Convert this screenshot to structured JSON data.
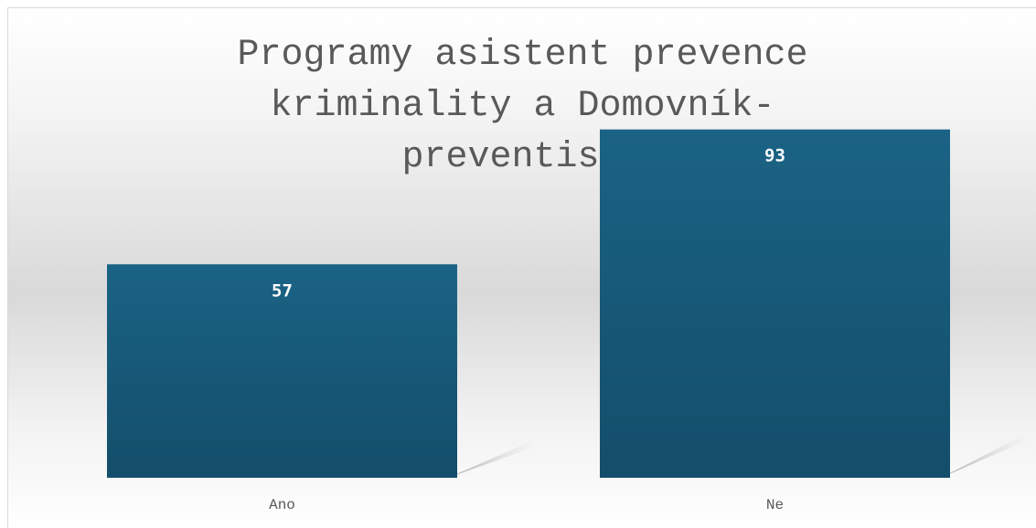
{
  "chart_data": {
    "type": "bar",
    "title": "Programy asistent prevence kriminality a Domovník-preventista",
    "categories": [
      "Ano",
      "Ne"
    ],
    "series": [
      {
        "values": [
          57,
          93
        ],
        "color": "#1b6385"
      }
    ],
    "data_labels": [
      "57",
      "93"
    ],
    "xlabel": "",
    "ylabel": "",
    "ylim": [
      0,
      100
    ],
    "grid": false,
    "legend": "none"
  },
  "colors": {
    "bar_top": "#1b6385",
    "bar_bottom": "#134e6a",
    "title": "#595959",
    "tick": "#595959",
    "data_label": "#ffffff"
  }
}
